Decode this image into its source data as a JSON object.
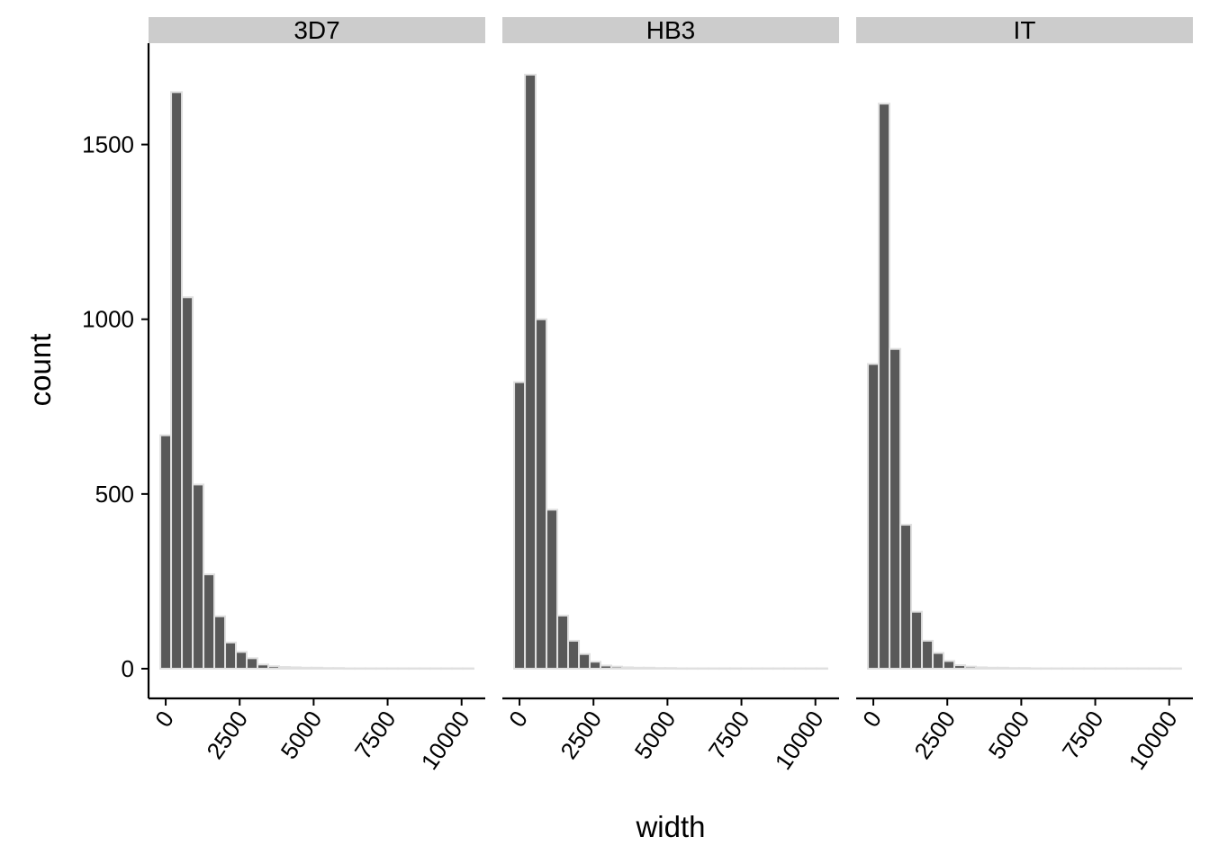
{
  "chart_data": {
    "type": "bar",
    "subtype": "faceted-histogram",
    "xlabel": "width",
    "ylabel": "count",
    "x_ticks": [
      0,
      2500,
      5000,
      7500,
      10000
    ],
    "x_tick_labels": [
      "0",
      "2500",
      "5000",
      "7500",
      "10000"
    ],
    "xlim": [
      -580,
      10800
    ],
    "y_ticks": [
      0,
      500,
      1000,
      1500
    ],
    "y_tick_labels": [
      "0",
      "500",
      "1000",
      "1500"
    ],
    "ylim": [
      -85,
      1790
    ],
    "bin_width": 365,
    "bin_centers": [
      0,
      365,
      730,
      1095,
      1460,
      1825,
      2190,
      2555,
      2920,
      3285,
      3650,
      4015,
      4380,
      4745,
      5110,
      5475,
      5840,
      6205,
      6570,
      6935,
      7300,
      7665,
      8030,
      8395,
      8760,
      9125,
      9490,
      9855,
      10220
    ],
    "bar_fill": "#595959",
    "bar_outline": "#e0e0e0",
    "strip_fill": "#cccccc",
    "grid": false,
    "facets": [
      {
        "label": "3D7",
        "values": [
          668,
          1650,
          1063,
          527,
          270,
          150,
          75,
          48,
          30,
          12,
          7,
          5,
          4,
          3,
          3,
          2,
          2,
          1,
          1,
          1,
          1,
          1,
          1,
          1,
          1,
          1,
          1,
          1,
          1
        ]
      },
      {
        "label": "HB3",
        "values": [
          820,
          1700,
          1000,
          455,
          152,
          80,
          42,
          20,
          9,
          6,
          4,
          3,
          3,
          2,
          2,
          1,
          1,
          1,
          1,
          1,
          1,
          1,
          1,
          1,
          1,
          1,
          1,
          1,
          1
        ]
      },
      {
        "label": "IT",
        "values": [
          872,
          1617,
          915,
          412,
          163,
          80,
          45,
          22,
          10,
          6,
          4,
          3,
          3,
          2,
          2,
          1,
          1,
          1,
          1,
          1,
          1,
          1,
          1,
          1,
          1,
          1,
          1,
          1,
          1
        ]
      }
    ]
  }
}
